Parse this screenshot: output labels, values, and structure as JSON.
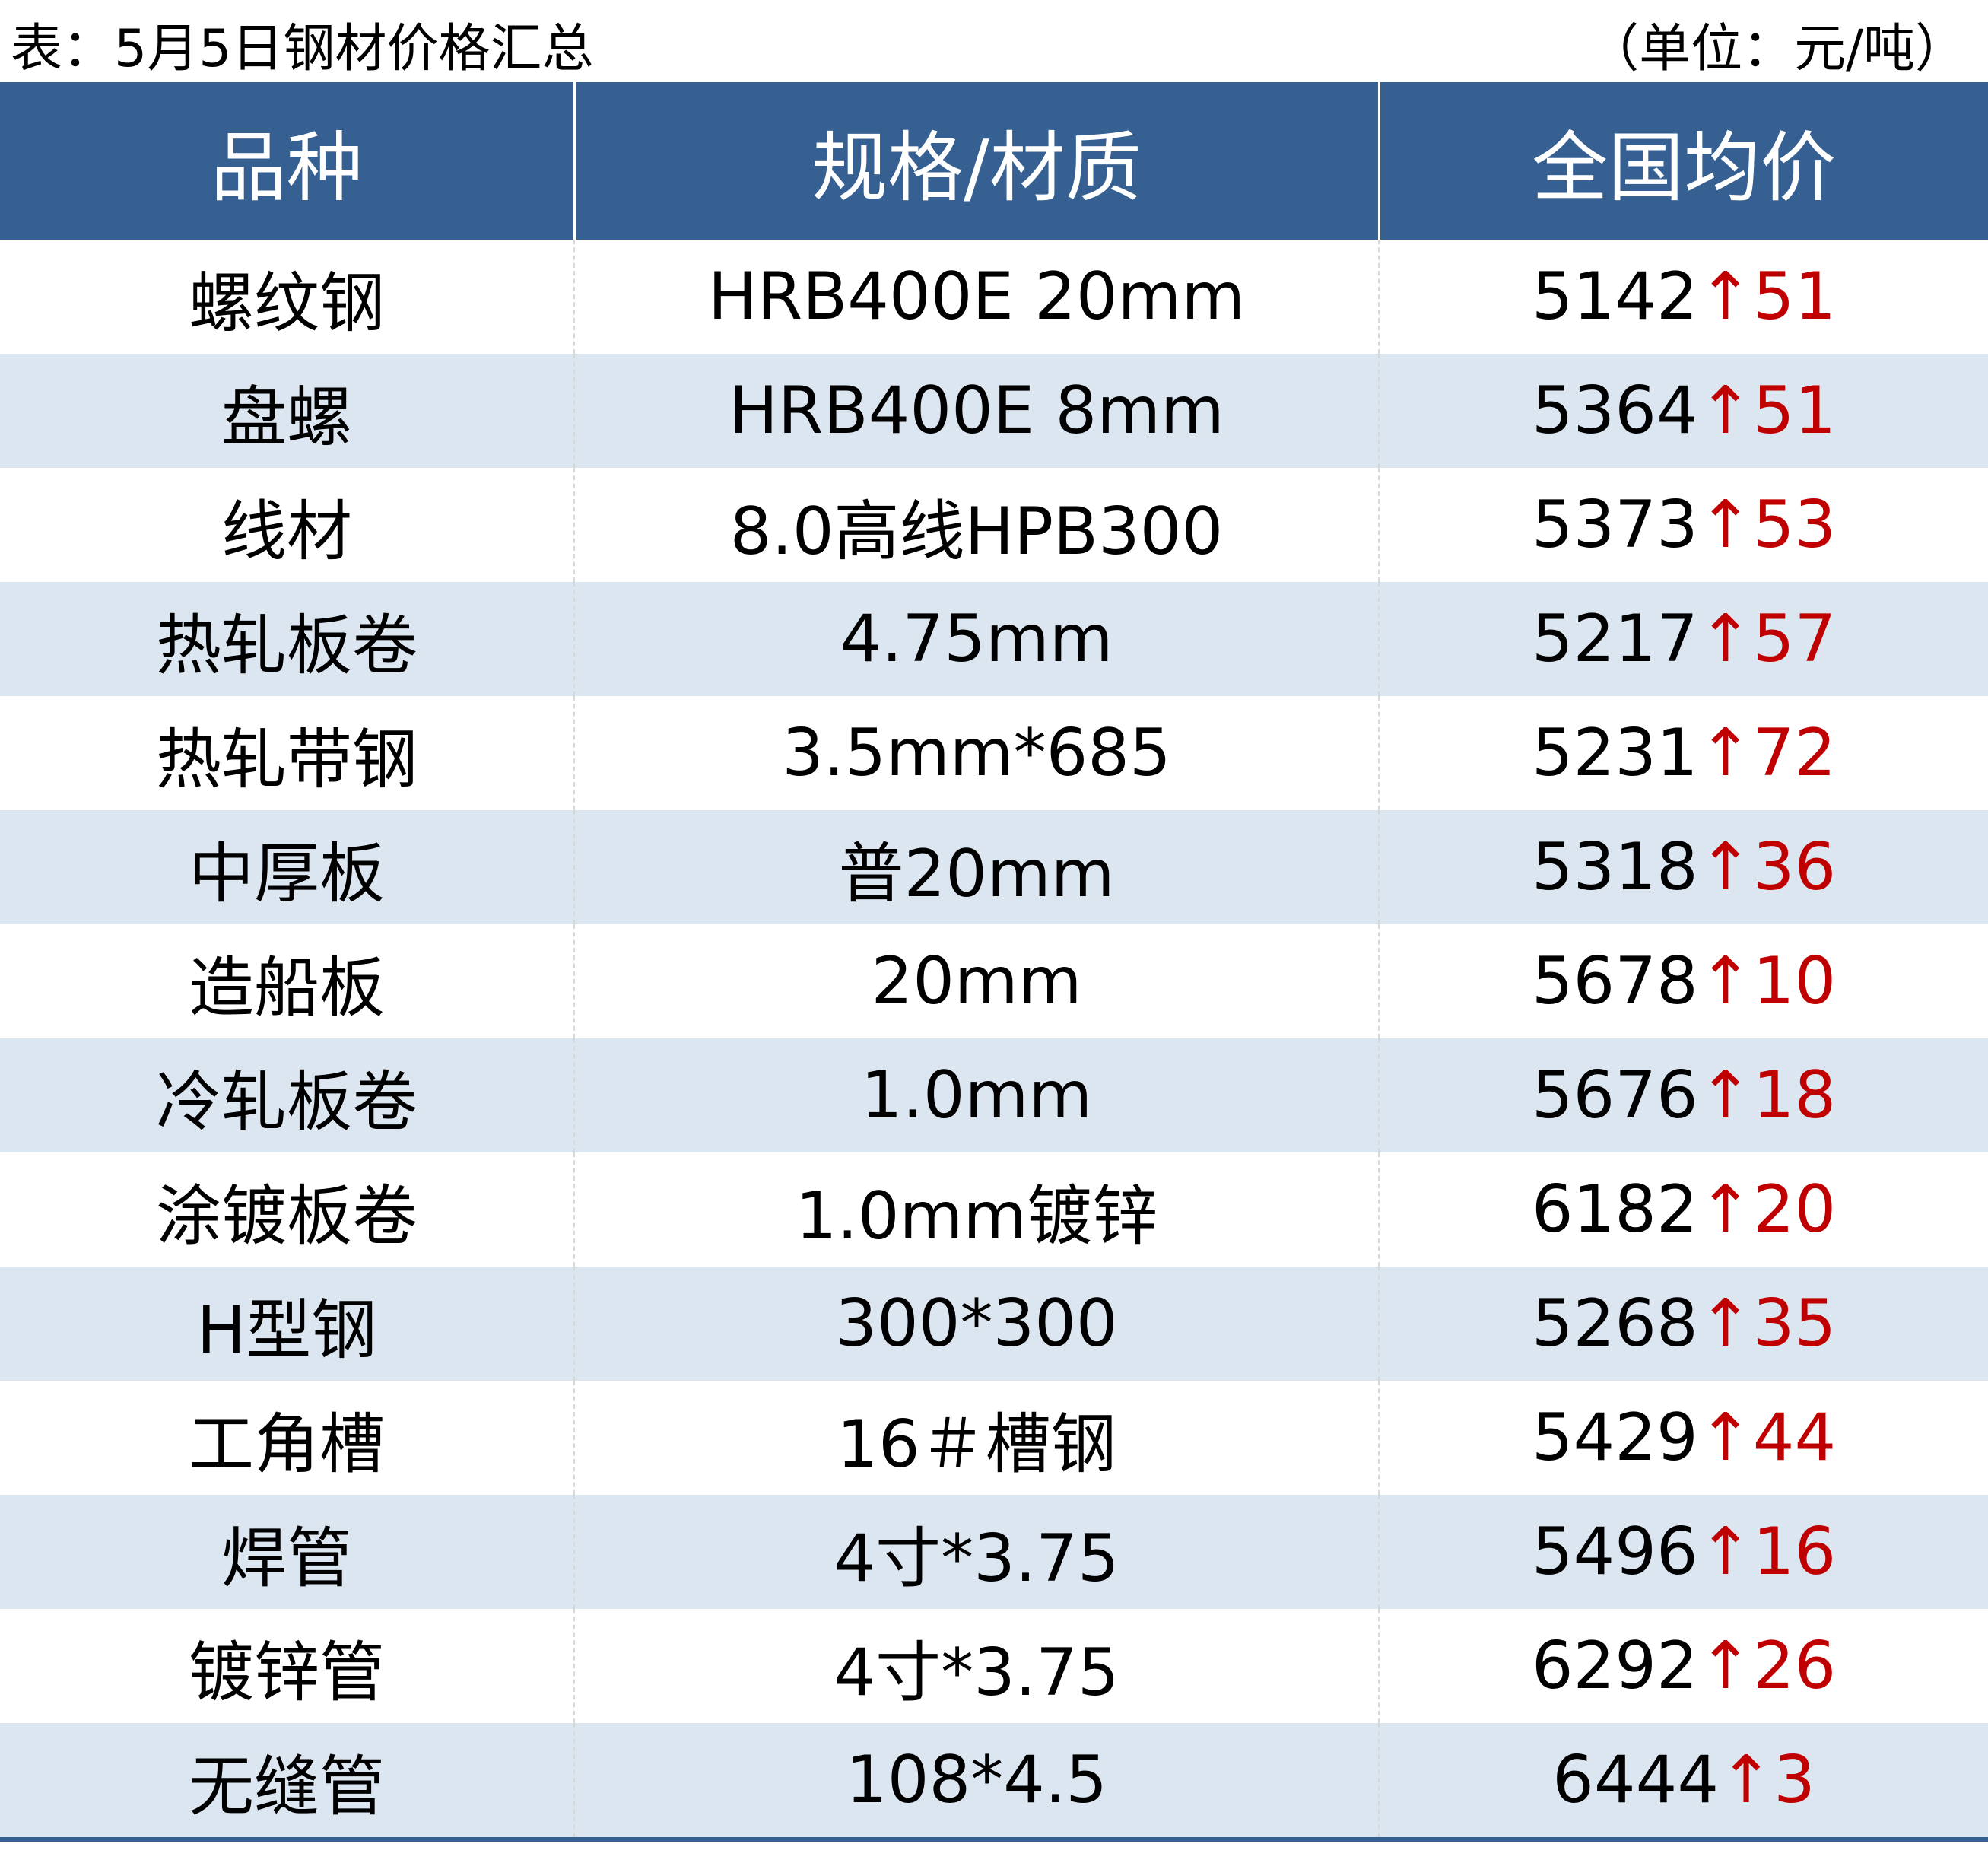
{
  "title": "表：5月5日钢材价格汇总",
  "unit": "（单位：元/吨）",
  "columns": [
    "品种",
    "规格/材质",
    "全国均价"
  ],
  "colors": {
    "header_bg": "#376092",
    "alt_row_bg": "#dce6f1",
    "up_color": "#c00000"
  },
  "rows": [
    {
      "variety": "螺纹钢",
      "spec": "HRB400E 20mm",
      "price": "5142",
      "change": "51",
      "direction": "up"
    },
    {
      "variety": "盘螺",
      "spec": "HRB400E 8mm",
      "price": "5364",
      "change": "51",
      "direction": "up"
    },
    {
      "variety": "线材",
      "spec": "8.0高线HPB300",
      "price": "5373",
      "change": "53",
      "direction": "up"
    },
    {
      "variety": "热轧板卷",
      "spec": "4.75mm",
      "price": "5217",
      "change": "57",
      "direction": "up"
    },
    {
      "variety": "热轧带钢",
      "spec": "3.5mm*685",
      "price": "5231",
      "change": "72",
      "direction": "up"
    },
    {
      "variety": "中厚板",
      "spec": "普20mm",
      "price": "5318",
      "change": "36",
      "direction": "up"
    },
    {
      "variety": "造船板",
      "spec": "20mm",
      "price": "5678",
      "change": "10",
      "direction": "up"
    },
    {
      "variety": "冷轧板卷",
      "spec": "1.0mm",
      "price": "5676",
      "change": "18",
      "direction": "up"
    },
    {
      "variety": "涂镀板卷",
      "spec": "1.0mm镀锌",
      "price": "6182",
      "change": "20",
      "direction": "up"
    },
    {
      "variety": "H型钢",
      "spec": "300*300",
      "price": "5268",
      "change": "35",
      "direction": "up"
    },
    {
      "variety": "工角槽",
      "spec": "16＃槽钢",
      "price": "5429",
      "change": "44",
      "direction": "up"
    },
    {
      "variety": "焊管",
      "spec": "4寸*3.75",
      "price": "5496",
      "change": "16",
      "direction": "up"
    },
    {
      "variety": "镀锌管",
      "spec": "4寸*3.75",
      "price": "6292",
      "change": "26",
      "direction": "up"
    },
    {
      "variety": "无缝管",
      "spec": "108*4.5",
      "price": "6444",
      "change": "3",
      "direction": "up"
    }
  ]
}
